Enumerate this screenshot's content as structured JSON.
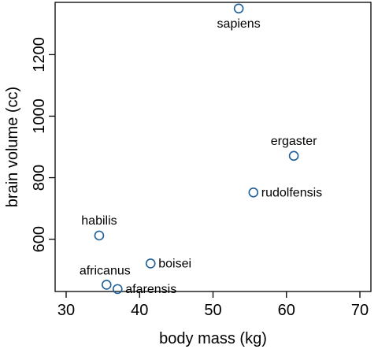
{
  "chart_data": {
    "type": "scatter",
    "xlabel": "body mass (kg)",
    "ylabel": "brain volume (cc)",
    "xlim": [
      28.5,
      71.5
    ],
    "ylim": [
      430,
      1370
    ],
    "x_ticks": [
      30,
      40,
      50,
      60,
      70
    ],
    "y_ticks": [
      600,
      800,
      1000,
      1200
    ],
    "grid": false,
    "legend": "none",
    "marker_color": "#1f5f99",
    "points": [
      {
        "label": "afarensis",
        "x": 37.0,
        "y": 438,
        "label_pos": "right"
      },
      {
        "label": "africanus",
        "x": 35.5,
        "y": 452,
        "label_pos": "above-left"
      },
      {
        "label": "habilis",
        "x": 34.5,
        "y": 612,
        "label_pos": "above"
      },
      {
        "label": "boisei",
        "x": 41.5,
        "y": 521,
        "label_pos": "right"
      },
      {
        "label": "rudolfensis",
        "x": 55.5,
        "y": 752,
        "label_pos": "right"
      },
      {
        "label": "ergaster",
        "x": 61.0,
        "y": 871,
        "label_pos": "above"
      },
      {
        "label": "sapiens",
        "x": 53.5,
        "y": 1350,
        "label_pos": "below"
      }
    ]
  }
}
